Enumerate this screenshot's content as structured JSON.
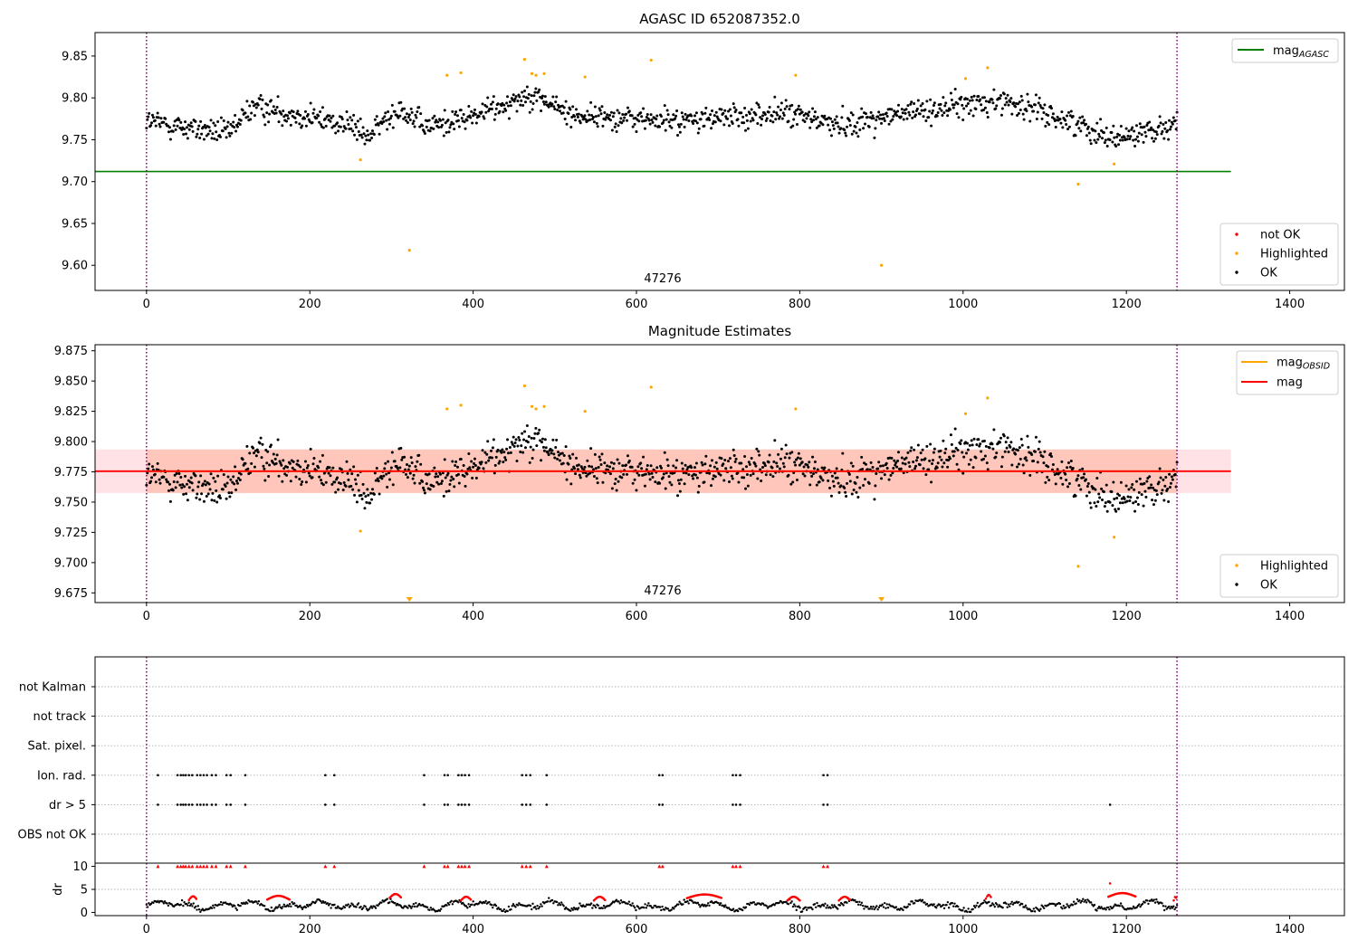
{
  "chart_data": [
    {
      "type": "scatter",
      "title": "AGASC ID 652087352.0",
      "annotation": "47276",
      "xlim": [
        -63,
        1467
      ],
      "ylim": [
        9.57,
        9.878
      ],
      "xticks": [
        0,
        200,
        400,
        600,
        800,
        1000,
        1200,
        1400
      ],
      "yticks": [
        9.6,
        9.65,
        9.7,
        9.75,
        9.8,
        9.85
      ],
      "ytick_labels": [
        "9.60",
        "9.65",
        "9.70",
        "9.75",
        "9.80",
        "9.85"
      ],
      "obs_boundaries": [
        0,
        1262
      ],
      "lines": [
        {
          "name": "mag_AGASC",
          "color": "#008000",
          "y": 9.712,
          "x": [
            -63,
            1328
          ]
        }
      ],
      "legend_lines": [
        {
          "base": "mag",
          "sub": "AGASC",
          "color": "#008000"
        }
      ],
      "legend_points": [
        {
          "name": "not OK",
          "color": "#ff0000"
        },
        {
          "name": "Highlighted",
          "color": "#ffa500"
        },
        {
          "name": "OK",
          "color": "#000000"
        }
      ],
      "series_ok": {
        "name": "OK",
        "x_range": [
          0,
          1262
        ],
        "n": 1200,
        "description_trend": [
          [
            0,
            9.772
          ],
          [
            100,
            9.757
          ],
          [
            130,
            9.79
          ],
          [
            250,
            9.768
          ],
          [
            270,
            9.752
          ],
          [
            310,
            9.79
          ],
          [
            340,
            9.765
          ],
          [
            400,
            9.778
          ],
          [
            470,
            9.805
          ],
          [
            520,
            9.78
          ],
          [
            650,
            9.772
          ],
          [
            780,
            9.782
          ],
          [
            850,
            9.768
          ],
          [
            950,
            9.785
          ],
          [
            1050,
            9.797
          ],
          [
            1100,
            9.782
          ],
          [
            1150,
            9.765
          ],
          [
            1190,
            9.752
          ],
          [
            1262,
            9.77
          ]
        ]
      },
      "highlighted": {
        "name": "Highlighted",
        "x": [
          262,
          322,
          368,
          385,
          463,
          472,
          477,
          487,
          537,
          618,
          795,
          900,
          1003,
          1030,
          1141,
          1185
        ],
        "y": [
          9.726,
          9.618,
          9.827,
          9.83,
          9.846,
          9.829,
          9.827,
          9.829,
          9.825,
          9.845,
          9.827,
          9.6,
          9.823,
          9.836,
          9.697,
          9.721
        ]
      }
    },
    {
      "type": "scatter",
      "title": "Magnitude Estimates",
      "annotation": "47276",
      "xlim": [
        -63,
        1467
      ],
      "ylim": [
        9.667,
        9.88
      ],
      "xticks": [
        0,
        200,
        400,
        600,
        800,
        1000,
        1200,
        1400
      ],
      "yticks": [
        9.675,
        9.7,
        9.725,
        9.75,
        9.775,
        9.8,
        9.825,
        9.85,
        9.875
      ],
      "ytick_labels": [
        "9.675",
        "9.700",
        "9.725",
        "9.750",
        "9.775",
        "9.800",
        "9.825",
        "9.850",
        "9.875"
      ],
      "obs_boundaries": [
        0,
        1262
      ],
      "bands": [
        {
          "color": "#ffb6c1",
          "opacity": 0.4,
          "y": [
            9.7575,
            9.7935
          ],
          "x": [
            -63,
            1328
          ]
        },
        {
          "color": "#ffa07a",
          "opacity": 0.4,
          "y": [
            9.7575,
            9.7935
          ],
          "x": [
            0,
            1262
          ]
        }
      ],
      "lines": [
        {
          "name": "mag_OBSID",
          "color": "#ffa500",
          "y": 9.7755,
          "x": [
            0,
            1262
          ]
        },
        {
          "name": "mag",
          "color": "#ff0000",
          "y": 9.7755,
          "x": [
            -63,
            1328
          ]
        }
      ],
      "legend_lines": [
        {
          "base": "mag",
          "sub": "OBSID",
          "color": "#ffa500"
        },
        {
          "base": "mag",
          "sub": "",
          "color": "#ff0000"
        }
      ],
      "legend_points": [
        {
          "name": "Highlighted",
          "color": "#ffa500"
        },
        {
          "name": "OK",
          "color": "#000000"
        }
      ],
      "highlighted": {
        "name": "Highlighted",
        "x": [
          262,
          368,
          385,
          463,
          472,
          477,
          487,
          537,
          618,
          795,
          1003,
          1030,
          1141,
          1185
        ],
        "y": [
          9.726,
          9.827,
          9.83,
          9.846,
          9.829,
          9.827,
          9.829,
          9.825,
          9.845,
          9.827,
          9.823,
          9.836,
          9.697,
          9.721
        ]
      },
      "offscale_markers": {
        "x": [
          322,
          900
        ],
        "color": "#ffa500"
      }
    },
    {
      "type": "scatter",
      "title": "",
      "xlim": [
        -63,
        1467
      ],
      "categories": [
        "not Kalman",
        "not track",
        "Sat. pixel.",
        "Ion. rad.",
        "dr > 5",
        "OBS not OK"
      ],
      "flags": {
        "Ion. rad.": [
          14,
          38,
          42,
          45,
          48,
          52,
          56,
          62,
          66,
          70,
          74,
          80,
          85,
          98,
          103,
          121,
          219,
          230,
          340,
          365,
          369,
          382,
          386,
          390,
          395,
          460,
          465,
          470,
          490,
          628,
          632,
          718,
          722,
          727,
          829,
          834
        ],
        "dr > 5": [
          14,
          38,
          42,
          45,
          48,
          52,
          56,
          62,
          66,
          70,
          74,
          80,
          85,
          98,
          103,
          121,
          219,
          230,
          340,
          365,
          369,
          382,
          386,
          390,
          395,
          460,
          465,
          470,
          490,
          628,
          632,
          718,
          722,
          727,
          829,
          834,
          1180
        ]
      },
      "obs_boundaries": [
        0,
        1262
      ]
    },
    {
      "type": "scatter",
      "ylabel": "dr",
      "xlim": [
        -63,
        1467
      ],
      "ylim": [
        -0.7,
        10.7
      ],
      "yticks": [
        0,
        5,
        10
      ],
      "ytick_labels": [
        "0",
        "5",
        "10"
      ],
      "xticks": [
        0,
        200,
        400,
        600,
        800,
        1000,
        1200,
        1400
      ],
      "obs_boundaries": [
        0,
        1262
      ],
      "clipped_markers": {
        "color": "#ff0000",
        "y": 10,
        "x": [
          14,
          38,
          42,
          45,
          48,
          52,
          56,
          62,
          66,
          70,
          74,
          80,
          85,
          98,
          103,
          121,
          219,
          230,
          340,
          365,
          369,
          382,
          386,
          390,
          395,
          460,
          465,
          470,
          490,
          628,
          632,
          718,
          722,
          727,
          829,
          834
        ]
      },
      "red_arcs": [
        [
          52,
          62,
          3.1
        ],
        [
          148,
          175,
          3.2
        ],
        [
          298,
          312,
          3.6
        ],
        [
          385,
          398,
          3.0
        ],
        [
          548,
          562,
          3.0
        ],
        [
          662,
          705,
          3.5
        ],
        [
          785,
          800,
          3.0
        ],
        [
          848,
          862,
          3.0
        ],
        [
          1028,
          1035,
          3.4
        ],
        [
          1178,
          1212,
          3.8
        ],
        [
          1258,
          1262,
          3.0
        ]
      ]
    }
  ]
}
